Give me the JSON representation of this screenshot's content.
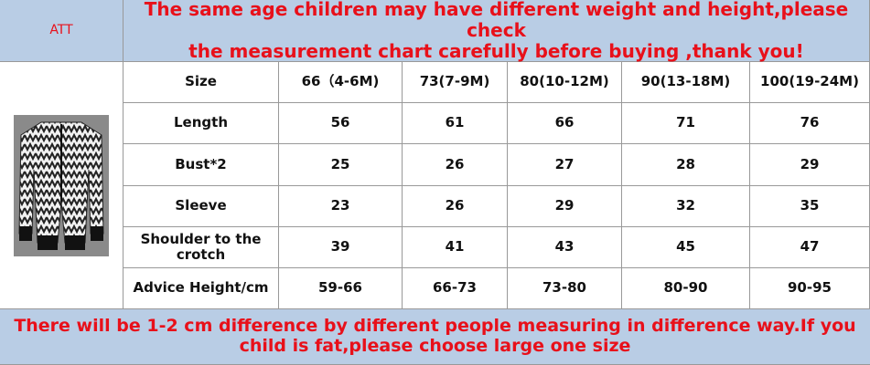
{
  "header": {
    "label": "ATT",
    "title_lines": [
      "The same age children may have different weight and height,please check",
      "the measurement chart carefully before buying ,thank you!"
    ]
  },
  "table": {
    "rows": [
      [
        "Size",
        "66（4-6M)",
        "73(7-9M)",
        "80(10-12M)",
        "90(13-18M)",
        "100(19-24M)"
      ],
      [
        "Length",
        56,
        61,
        66,
        71,
        76
      ],
      [
        "Bust*2",
        25,
        26,
        27,
        28,
        29
      ],
      [
        "Sleeve",
        23,
        26,
        29,
        32,
        35
      ],
      [
        "Shoulder to the crotch",
        39,
        41,
        43,
        45,
        47
      ],
      [
        "Advice Height/cm",
        "59-66",
        "66-73",
        "73-80",
        "80-90",
        "90-95"
      ]
    ]
  },
  "footer": {
    "lines": [
      "There will be 1-2 cm difference by different people measuring in difference way.If you",
      "child is fat,please choose large one size"
    ]
  }
}
